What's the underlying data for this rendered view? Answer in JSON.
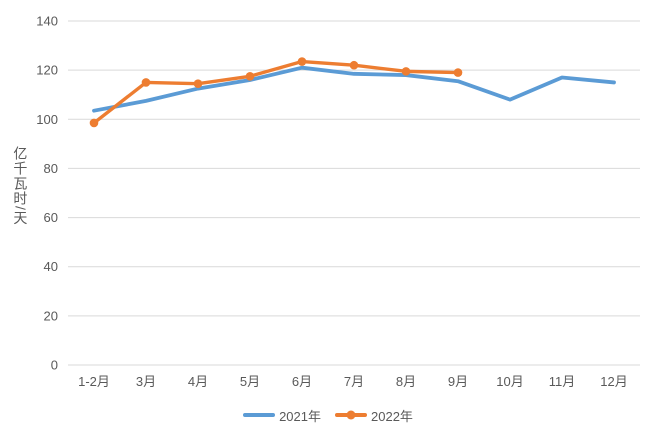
{
  "chart_data": {
    "type": "line",
    "title": "",
    "xlabel": "",
    "ylabel": "亿千瓦时/天",
    "categories": [
      "1-2月",
      "3月",
      "4月",
      "5月",
      "6月",
      "7月",
      "8月",
      "9月",
      "10月",
      "11月",
      "12月"
    ],
    "series": [
      {
        "name": "2021年",
        "color": "#5B9BD5",
        "marker": "none",
        "values": [
          103.5,
          107.5,
          112.5,
          116,
          121,
          118.5,
          118,
          115.5,
          108,
          117,
          115
        ]
      },
      {
        "name": "2022年",
        "color": "#ED7D31",
        "marker": "circle",
        "values": [
          98.5,
          115,
          114.5,
          117.5,
          123.5,
          122,
          119.5,
          119
        ]
      }
    ],
    "ylim": [
      0,
      140
    ],
    "yticks": [
      0,
      20,
      40,
      60,
      80,
      100,
      120,
      140
    ],
    "grid": "horizontal",
    "gridline_color": "#D9D9D9",
    "tick_label_color": "#595959",
    "legend_position": "bottom-center",
    "legend_labels": [
      "2021年",
      "2022年"
    ]
  }
}
